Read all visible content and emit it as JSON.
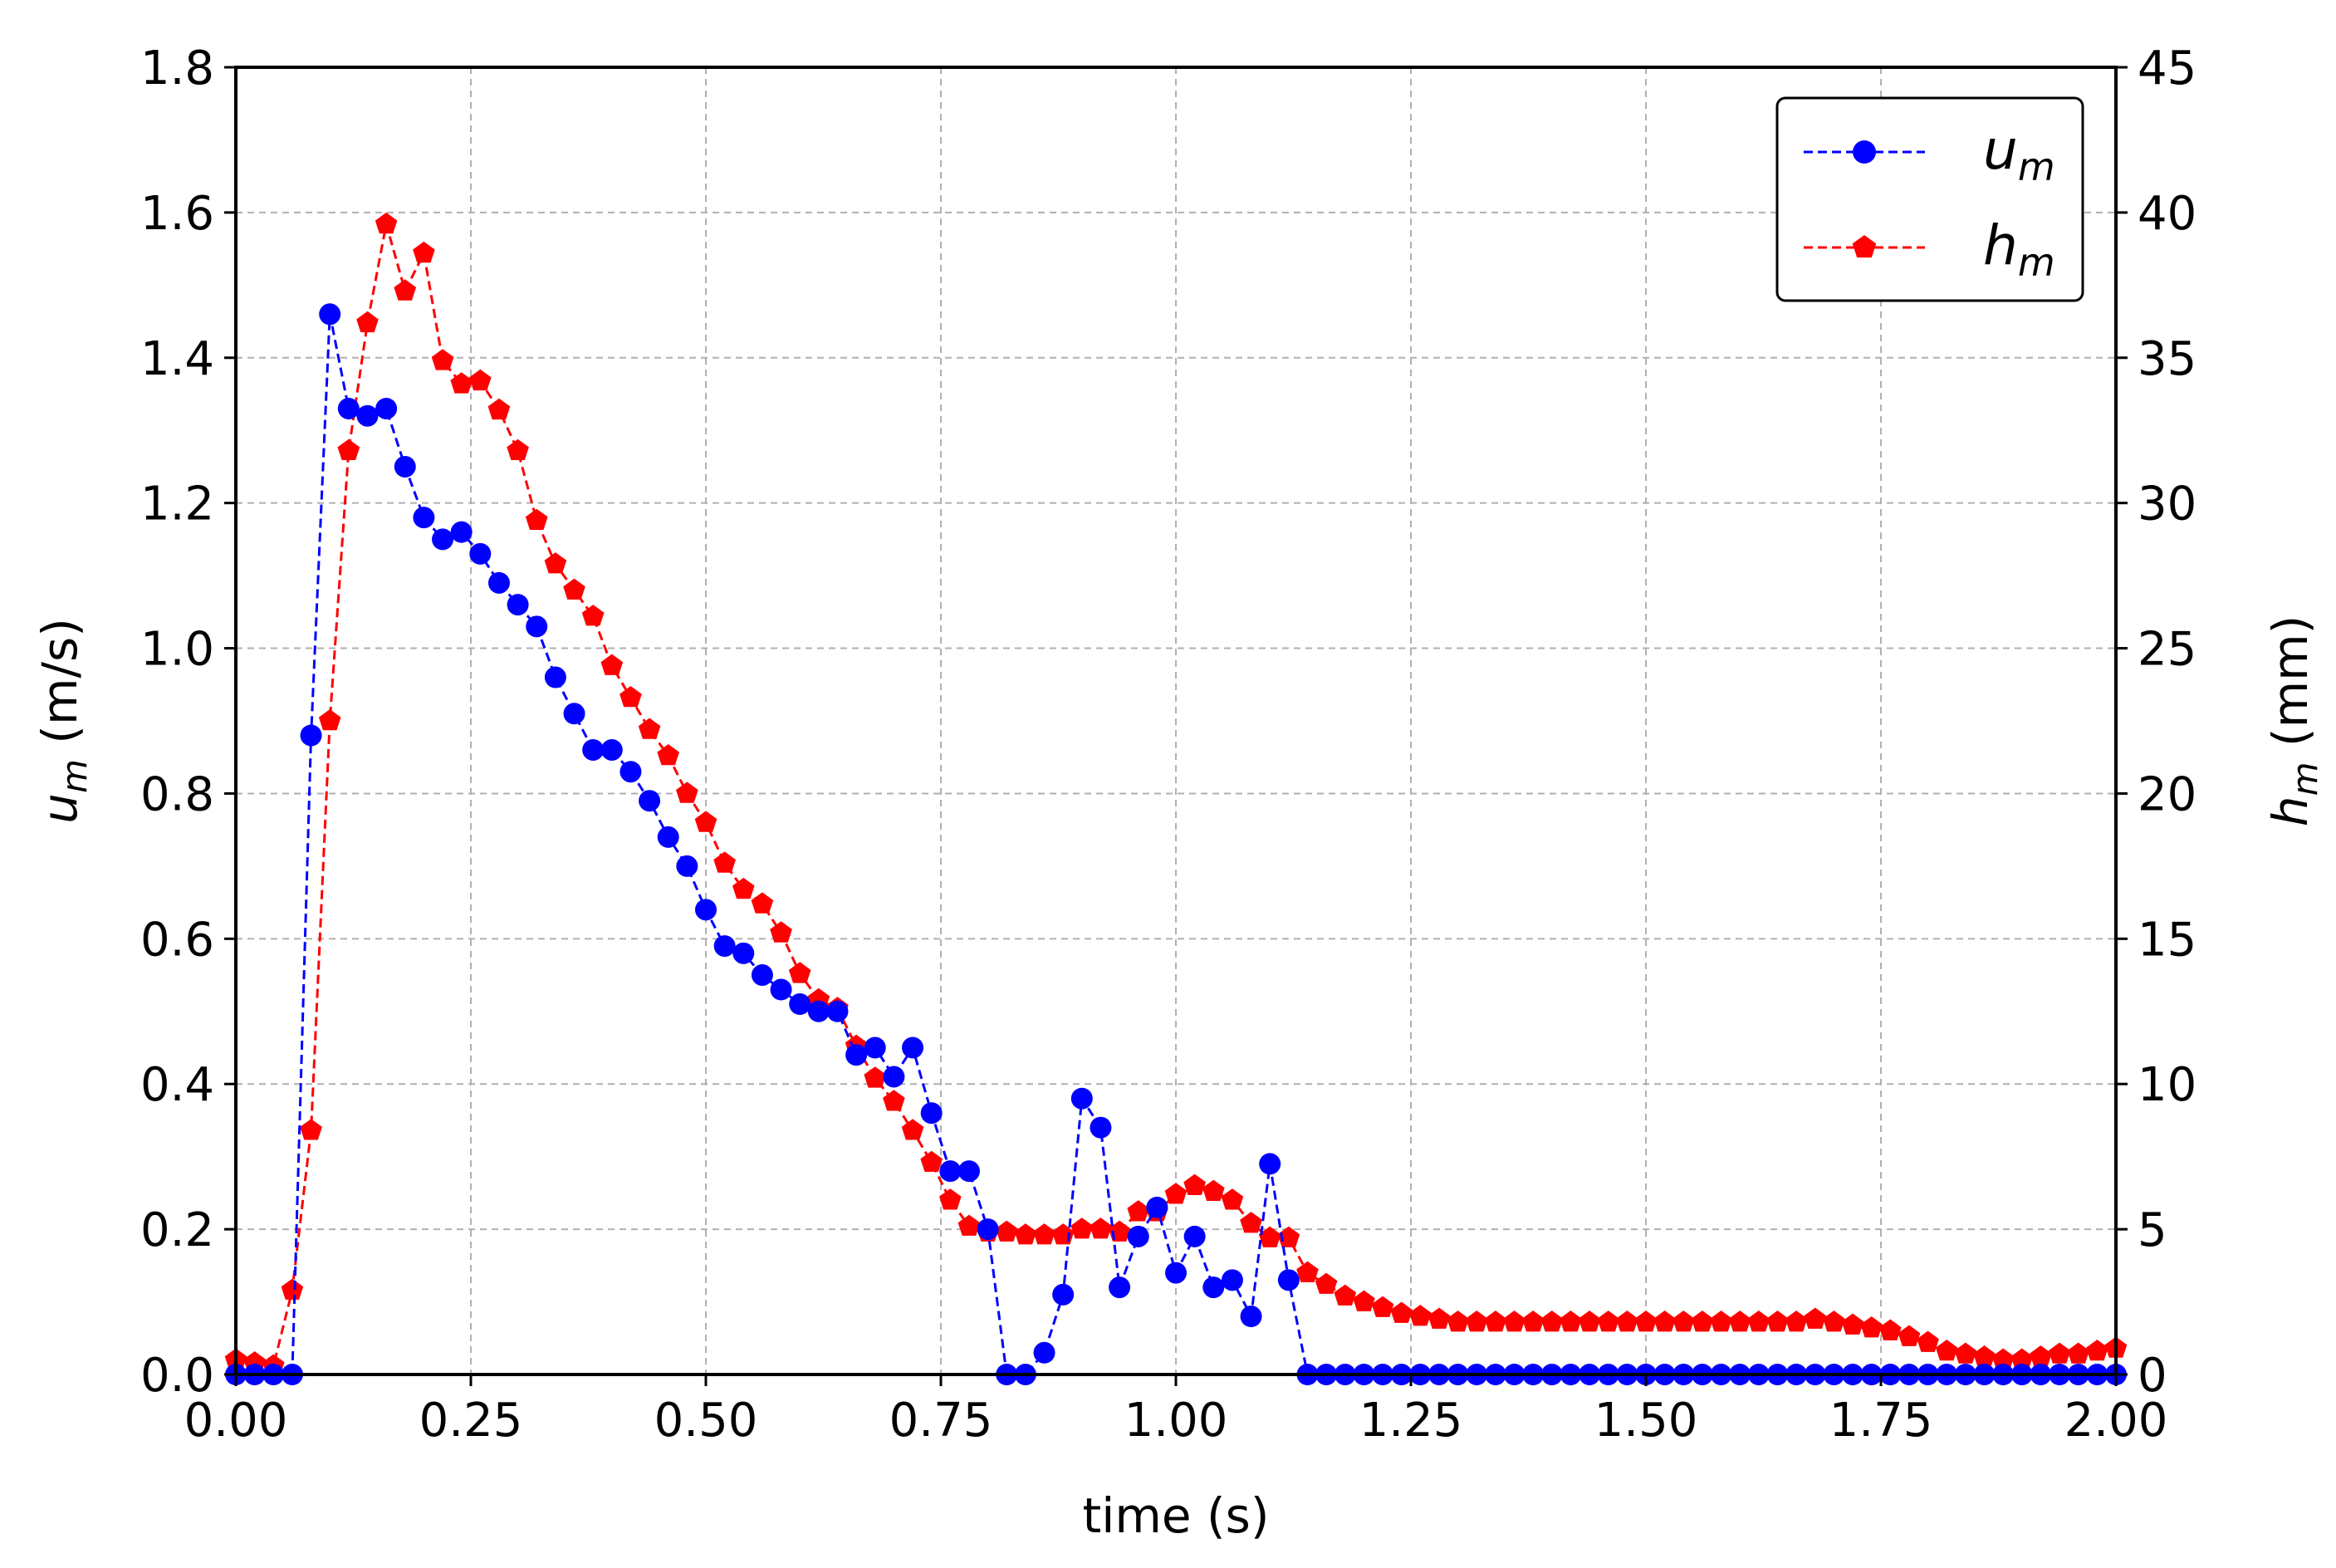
{
  "chart_data": {
    "type": "line",
    "xlabel": "time (s)",
    "ylabel_left": {
      "main": "u",
      "sub": "m",
      "unit": "(m/s)"
    },
    "ylabel_right": {
      "main": "h",
      "sub": "m",
      "unit": "(mm)"
    },
    "xlim": [
      0,
      2.0
    ],
    "ylim_left": [
      0,
      1.8
    ],
    "ylim_right": [
      0,
      45
    ],
    "x_ticks": [
      "0.00",
      "0.25",
      "0.50",
      "0.75",
      "1.00",
      "1.25",
      "1.50",
      "1.75",
      "2.00"
    ],
    "y_left_ticks": [
      "0.0",
      "0.2",
      "0.4",
      "0.6",
      "0.8",
      "1.0",
      "1.2",
      "1.4",
      "1.6",
      "1.8"
    ],
    "y_right_ticks": [
      "0",
      "5",
      "10",
      "15",
      "20",
      "25",
      "30",
      "35",
      "40",
      "45"
    ],
    "grid": true,
    "legend_position": "top-right",
    "series": [
      {
        "name": "u",
        "name_sub": "m",
        "axis": "left",
        "color": "#0000ff",
        "marker": "circle",
        "line_style": "dashed",
        "x": [
          0.0,
          0.02,
          0.04,
          0.06,
          0.08,
          0.1,
          0.12,
          0.14,
          0.16,
          0.18,
          0.2,
          0.22,
          0.24,
          0.26,
          0.28,
          0.3,
          0.32,
          0.34,
          0.36,
          0.38,
          0.4,
          0.42,
          0.44,
          0.46,
          0.48,
          0.5,
          0.52,
          0.54,
          0.56,
          0.58,
          0.6,
          0.62,
          0.64,
          0.66,
          0.68,
          0.7,
          0.72,
          0.74,
          0.76,
          0.78,
          0.8,
          0.82,
          0.84,
          0.86,
          0.88,
          0.9,
          0.92,
          0.94,
          0.96,
          0.98,
          1.0,
          1.02,
          1.04,
          1.06,
          1.08,
          1.1,
          1.12,
          1.14,
          1.16,
          1.18,
          1.2,
          1.22,
          1.24,
          1.26,
          1.28,
          1.3,
          1.32,
          1.34,
          1.36,
          1.38,
          1.4,
          1.42,
          1.44,
          1.46,
          1.48,
          1.5,
          1.52,
          1.54,
          1.56,
          1.58,
          1.6,
          1.62,
          1.64,
          1.66,
          1.68,
          1.7,
          1.72,
          1.74,
          1.76,
          1.78,
          1.8,
          1.82,
          1.84,
          1.86,
          1.88,
          1.9,
          1.92,
          1.94,
          1.96,
          1.98,
          2.0
        ],
        "values": [
          0.0,
          0.0,
          0.0,
          0.0,
          0.88,
          1.46,
          1.33,
          1.32,
          1.33,
          1.25,
          1.18,
          1.15,
          1.16,
          1.13,
          1.09,
          1.06,
          1.03,
          0.96,
          0.91,
          0.86,
          0.86,
          0.83,
          0.79,
          0.74,
          0.7,
          0.64,
          0.59,
          0.58,
          0.55,
          0.53,
          0.51,
          0.5,
          0.5,
          0.44,
          0.45,
          0.41,
          0.45,
          0.36,
          0.28,
          0.28,
          0.2,
          0.0,
          0.0,
          0.03,
          0.11,
          0.38,
          0.34,
          0.12,
          0.19,
          0.23,
          0.14,
          0.19,
          0.12,
          0.13,
          0.08,
          0.29,
          0.13,
          0.0,
          0.0,
          0.0,
          0.0,
          0.0,
          0.0,
          0.0,
          0.0,
          0.0,
          0.0,
          0.0,
          0.0,
          0.0,
          0.0,
          0.0,
          0.0,
          0.0,
          0.0,
          0.0,
          0.0,
          0.0,
          0.0,
          0.0,
          0.0,
          0.0,
          0.0,
          0.0,
          0.0,
          0.0,
          0.0,
          0.0,
          0.0,
          0.0,
          0.0,
          0.0,
          0.0,
          0.0,
          0.0,
          0.0,
          0.0,
          0.0,
          0.0,
          0.0,
          0.0
        ]
      },
      {
        "name": "h",
        "name_sub": "m",
        "axis": "right",
        "color": "#ff0000",
        "marker": "pentagon",
        "line_style": "dashed",
        "x": [
          0.0,
          0.02,
          0.04,
          0.06,
          0.08,
          0.1,
          0.12,
          0.14,
          0.16,
          0.18,
          0.2,
          0.22,
          0.24,
          0.26,
          0.28,
          0.3,
          0.32,
          0.34,
          0.36,
          0.38,
          0.4,
          0.42,
          0.44,
          0.46,
          0.48,
          0.5,
          0.52,
          0.54,
          0.56,
          0.58,
          0.6,
          0.62,
          0.64,
          0.66,
          0.68,
          0.7,
          0.72,
          0.74,
          0.76,
          0.78,
          0.8,
          0.82,
          0.84,
          0.86,
          0.88,
          0.9,
          0.92,
          0.94,
          0.96,
          0.98,
          1.0,
          1.02,
          1.04,
          1.06,
          1.08,
          1.1,
          1.12,
          1.14,
          1.16,
          1.18,
          1.2,
          1.22,
          1.24,
          1.26,
          1.28,
          1.3,
          1.32,
          1.34,
          1.36,
          1.38,
          1.4,
          1.42,
          1.44,
          1.46,
          1.48,
          1.5,
          1.52,
          1.54,
          1.56,
          1.58,
          1.6,
          1.62,
          1.64,
          1.66,
          1.68,
          1.7,
          1.72,
          1.74,
          1.76,
          1.78,
          1.8,
          1.82,
          1.84,
          1.86,
          1.88,
          1.9,
          1.92,
          1.94,
          1.96,
          1.98,
          2.0
        ],
        "values": [
          0.5,
          0.4,
          0.3,
          2.9,
          8.4,
          22.5,
          31.8,
          36.2,
          39.6,
          37.3,
          38.6,
          34.9,
          34.1,
          34.2,
          33.2,
          31.8,
          29.4,
          27.9,
          27.0,
          26.1,
          24.4,
          23.3,
          22.2,
          21.3,
          20.0,
          19.0,
          17.6,
          16.7,
          16.2,
          15.2,
          13.8,
          12.9,
          12.6,
          11.3,
          10.2,
          9.4,
          8.4,
          7.3,
          6.0,
          5.1,
          4.9,
          4.9,
          4.8,
          4.8,
          4.8,
          5.0,
          5.0,
          4.9,
          5.6,
          5.6,
          6.2,
          6.5,
          6.3,
          6.0,
          5.2,
          4.7,
          4.7,
          3.5,
          3.1,
          2.7,
          2.5,
          2.3,
          2.1,
          2.0,
          1.9,
          1.8,
          1.8,
          1.8,
          1.8,
          1.8,
          1.8,
          1.8,
          1.8,
          1.8,
          1.8,
          1.8,
          1.8,
          1.8,
          1.8,
          1.8,
          1.8,
          1.8,
          1.8,
          1.8,
          1.9,
          1.8,
          1.7,
          1.6,
          1.5,
          1.3,
          1.1,
          0.8,
          0.7,
          0.6,
          0.5,
          0.5,
          0.6,
          0.7,
          0.7,
          0.8,
          0.9
        ]
      }
    ]
  }
}
